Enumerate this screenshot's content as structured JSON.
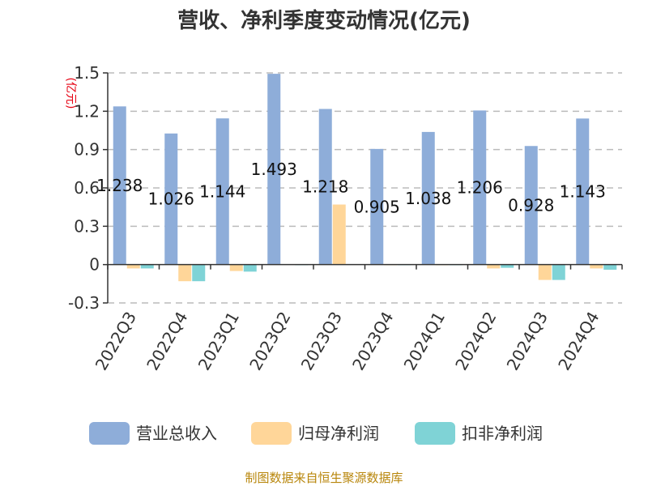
{
  "chart_data": {
    "type": "bar",
    "title": "营收、净利季度变动情况(亿元)",
    "unit_label": "(亿元)",
    "categories": [
      "2022Q3",
      "2022Q4",
      "2023Q1",
      "2023Q2",
      "2023Q3",
      "2023Q4",
      "2024Q1",
      "2024Q2",
      "2024Q3",
      "2024Q4"
    ],
    "ylim": [
      -0.3,
      1.5
    ],
    "yticks": [
      "1.5",
      "1.2",
      "0.9",
      "0.6",
      "0.3",
      "0",
      "-0.3"
    ],
    "grid": true,
    "legend_position": "bottom",
    "series": [
      {
        "name": "营业总收入",
        "color": "#8eadd9",
        "values": [
          1.238,
          1.026,
          1.144,
          1.493,
          1.218,
          0.905,
          1.038,
          1.206,
          0.928,
          1.143
        ],
        "labels": [
          "1.238",
          "1.026",
          "1.144",
          "1.493",
          "1.218",
          "0.905",
          "1.038",
          "1.206",
          "0.928",
          "1.143"
        ]
      },
      {
        "name": "归母净利润",
        "color": "#ffd699",
        "values": [
          -0.03,
          -0.13,
          -0.05,
          0.003,
          0.47,
          -0.005,
          -0.005,
          -0.03,
          -0.12,
          -0.03
        ]
      },
      {
        "name": "扣非净利润",
        "color": "#7fd3d6",
        "values": [
          -0.03,
          -0.13,
          -0.055,
          -0.003,
          0.003,
          -0.005,
          -0.005,
          -0.025,
          -0.12,
          -0.04
        ]
      }
    ]
  },
  "source_text": "制图数据来自恒生聚源数据库"
}
